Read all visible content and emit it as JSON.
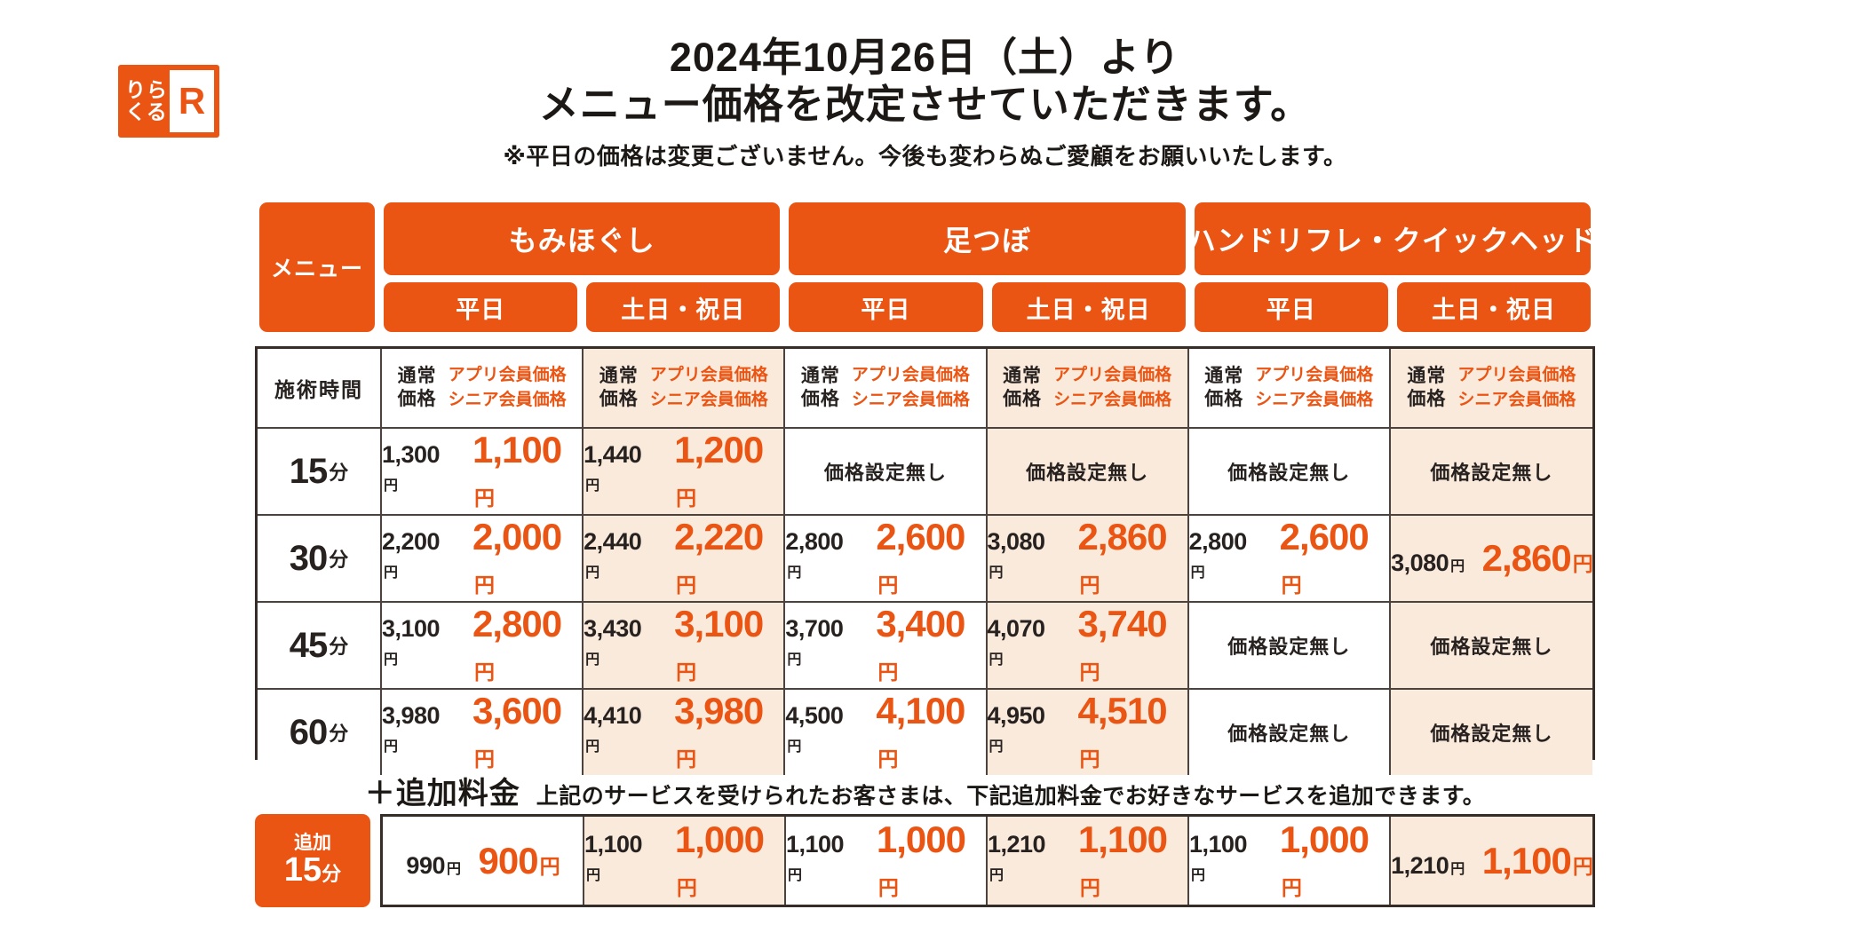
{
  "brand": {
    "logo_top": "りら",
    "logo_bottom": "くる",
    "logo_mark": "R"
  },
  "header": {
    "title_line1": "2024年10月26日（土）より",
    "title_line2": "メニュー価格を改定させていただきます。",
    "note": "※平日の価格は変更ございません。今後も変わらぬご愛顧をお願いいたします。"
  },
  "colors": {
    "brand_orange": "#ea5514",
    "weekend_bg": "#faeadc",
    "ink": "#272220"
  },
  "table": {
    "menu_label": "メニュー",
    "groups": [
      {
        "label": "もみほぐし",
        "days": [
          "平日",
          "土日・祝日"
        ]
      },
      {
        "label": "足つぼ",
        "days": [
          "平日",
          "土日・祝日"
        ]
      },
      {
        "label": "ハンドリフレ・クイックヘッド",
        "days": [
          "平日",
          "土日・祝日"
        ]
      }
    ],
    "time_header": "施術時間",
    "price_header": {
      "normal_line1": "通常",
      "normal_line2": "価格",
      "member_line1": "アプリ会員価格",
      "member_line2": "シニア会員価格"
    },
    "no_price_label": "価格設定無し",
    "yen": "円",
    "rows": [
      {
        "time": "15",
        "unit": "分",
        "cells": [
          {
            "normal": "1,300",
            "member": "1,100"
          },
          {
            "normal": "1,440",
            "member": "1,200"
          },
          null,
          null,
          null,
          null
        ]
      },
      {
        "time": "30",
        "unit": "分",
        "cells": [
          {
            "normal": "2,200",
            "member": "2,000"
          },
          {
            "normal": "2,440",
            "member": "2,220"
          },
          {
            "normal": "2,800",
            "member": "2,600"
          },
          {
            "normal": "3,080",
            "member": "2,860"
          },
          {
            "normal": "2,800",
            "member": "2,600"
          },
          {
            "normal": "3,080",
            "member": "2,860"
          }
        ]
      },
      {
        "time": "45",
        "unit": "分",
        "cells": [
          {
            "normal": "3,100",
            "member": "2,800"
          },
          {
            "normal": "3,430",
            "member": "3,100"
          },
          {
            "normal": "3,700",
            "member": "3,400"
          },
          {
            "normal": "4,070",
            "member": "3,740"
          },
          null,
          null
        ]
      },
      {
        "time": "60",
        "unit": "分",
        "cells": [
          {
            "normal": "3,980",
            "member": "3,600"
          },
          {
            "normal": "4,410",
            "member": "3,980"
          },
          {
            "normal": "4,500",
            "member": "4,100"
          },
          {
            "normal": "4,950",
            "member": "4,510"
          },
          null,
          null
        ]
      }
    ]
  },
  "addon": {
    "heading": "＋追加料金",
    "description": "上記のサービスを受けられたお客さまは、下記追加料金でお好きなサービスを追加できます。",
    "row_label_top": "追加",
    "time": "15",
    "unit": "分",
    "cells": [
      {
        "normal": "990",
        "member": "900"
      },
      {
        "normal": "1,100",
        "member": "1,000"
      },
      {
        "normal": "1,100",
        "member": "1,000"
      },
      {
        "normal": "1,210",
        "member": "1,100"
      },
      {
        "normal": "1,100",
        "member": "1,000"
      },
      {
        "normal": "1,210",
        "member": "1,100"
      }
    ]
  }
}
